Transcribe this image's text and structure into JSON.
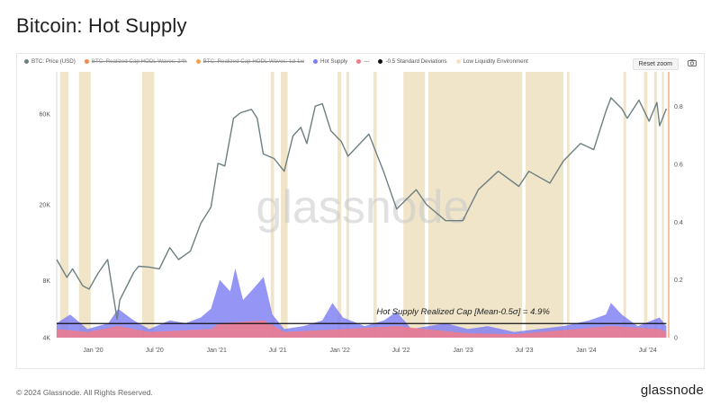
{
  "title": "Bitcoin: Hot Supply",
  "footer": {
    "copyright": "© 2024 Glassnode. All Rights Reserved.",
    "logo": "glassnode"
  },
  "watermark": "glassnode",
  "toolbar": {
    "reset_label": "Reset zoom"
  },
  "legend": [
    {
      "label": "BTC: Price (USD)",
      "color": "#6e7f80",
      "disabled": false
    },
    {
      "label": "BTC: Realized Cap HODL Waves: 24h",
      "color": "#f08a4b",
      "disabled": true
    },
    {
      "label": "BTC: Realized Cap HODL Waves: 1d-1w",
      "color": "#f0a050",
      "disabled": true
    },
    {
      "label": "Hot Supply",
      "color": "#7b7bf2",
      "disabled": false
    },
    {
      "label": "---",
      "color": "#f07b8a",
      "disabled": false
    },
    {
      "label": "-0.5 Standard Deviations",
      "color": "#111111",
      "disabled": false
    },
    {
      "label": "Low Liquidity Environment",
      "color": "#f3e3c6",
      "disabled": false
    }
  ],
  "colors": {
    "price": "#6e7f80",
    "hot": "#7b7bf2",
    "hot_lower": "#f07b8a",
    "threshold": "#111111",
    "low_liquidity": "#efe0c0",
    "right_axis": "#f29b5a"
  },
  "chart_data": {
    "type": "line",
    "title": "Bitcoin: Hot Supply",
    "annotation": "Hot Supply Realized Cap [Mean-0.5σ] = 4.9%",
    "x_ticks": [
      "Jan '20",
      "Jul '20",
      "Jan '21",
      "Jul '21",
      "Jan '22",
      "Jul '22",
      "Jan '23",
      "Jul '23",
      "Jan '24",
      "Jul '24"
    ],
    "x_range": [
      "2019-09-15",
      "2024-09-01"
    ],
    "y_left": {
      "scale": "log",
      "ticks": [
        "4K",
        "8K",
        "20K",
        "60K"
      ],
      "tick_values": [
        4000,
        8000,
        20000,
        60000
      ],
      "range": [
        4000,
        100000
      ]
    },
    "y_right": {
      "ticks": [
        "0",
        "0.2",
        "0.4",
        "0.6",
        "0.8"
      ],
      "tick_values": [
        0,
        0.2,
        0.4,
        0.6,
        0.8
      ],
      "range": [
        0,
        0.92
      ]
    },
    "series": [
      {
        "name": "BTC: Price (USD)",
        "axis": "left",
        "points": [
          [
            "2019-09-15",
            10300
          ],
          [
            "2019-10-15",
            8300
          ],
          [
            "2019-11-01",
            9200
          ],
          [
            "2019-12-01",
            7500
          ],
          [
            "2019-12-20",
            7200
          ],
          [
            "2020-01-15",
            8700
          ],
          [
            "2020-02-13",
            10300
          ],
          [
            "2020-03-12",
            5000
          ],
          [
            "2020-03-20",
            6300
          ],
          [
            "2020-04-30",
            8800
          ],
          [
            "2020-05-15",
            9500
          ],
          [
            "2020-06-15",
            9400
          ],
          [
            "2020-07-15",
            9200
          ],
          [
            "2020-08-15",
            11900
          ],
          [
            "2020-09-10",
            10300
          ],
          [
            "2020-10-15",
            11400
          ],
          [
            "2020-11-15",
            16000
          ],
          [
            "2020-12-15",
            19400
          ],
          [
            "2021-01-05",
            33000
          ],
          [
            "2021-01-25",
            32000
          ],
          [
            "2021-02-20",
            57000
          ],
          [
            "2021-03-13",
            61000
          ],
          [
            "2021-04-14",
            63500
          ],
          [
            "2021-05-01",
            57000
          ],
          [
            "2021-05-19",
            37000
          ],
          [
            "2021-06-20",
            35000
          ],
          [
            "2021-07-20",
            30000
          ],
          [
            "2021-08-15",
            46000
          ],
          [
            "2021-09-07",
            51000
          ],
          [
            "2021-09-25",
            42000
          ],
          [
            "2021-10-20",
            66000
          ],
          [
            "2021-11-10",
            68000
          ],
          [
            "2021-12-05",
            49000
          ],
          [
            "2022-01-05",
            43000
          ],
          [
            "2022-01-25",
            36000
          ],
          [
            "2022-03-28",
            47000
          ],
          [
            "2022-05-10",
            30000
          ],
          [
            "2022-06-18",
            19000
          ],
          [
            "2022-08-15",
            24000
          ],
          [
            "2022-09-15",
            20000
          ],
          [
            "2022-11-10",
            16500
          ],
          [
            "2022-12-31",
            16500
          ],
          [
            "2023-02-15",
            24000
          ],
          [
            "2023-04-15",
            30000
          ],
          [
            "2023-06-15",
            25000
          ],
          [
            "2023-07-15",
            30000
          ],
          [
            "2023-09-15",
            26000
          ],
          [
            "2023-10-25",
            34000
          ],
          [
            "2023-12-15",
            42000
          ],
          [
            "2024-01-23",
            39000
          ],
          [
            "2024-02-28",
            62000
          ],
          [
            "2024-03-14",
            73000
          ],
          [
            "2024-04-15",
            64000
          ],
          [
            "2024-05-01",
            57000
          ],
          [
            "2024-06-05",
            71000
          ],
          [
            "2024-07-05",
            55000
          ],
          [
            "2024-07-28",
            69000
          ],
          [
            "2024-08-05",
            52000
          ],
          [
            "2024-08-25",
            64000
          ]
        ]
      },
      {
        "name": "Hot Supply",
        "axis": "right",
        "points": [
          [
            "2019-09-15",
            0.05
          ],
          [
            "2019-10-25",
            0.08
          ],
          [
            "2019-12-15",
            0.03
          ],
          [
            "2020-02-15",
            0.05
          ],
          [
            "2020-03-15",
            0.1
          ],
          [
            "2020-04-30",
            0.06
          ],
          [
            "2020-06-15",
            0.03
          ],
          [
            "2020-08-15",
            0.06
          ],
          [
            "2020-10-01",
            0.05
          ],
          [
            "2020-11-15",
            0.07
          ],
          [
            "2020-12-15",
            0.1
          ],
          [
            "2021-01-10",
            0.2
          ],
          [
            "2021-02-10",
            0.16
          ],
          [
            "2021-02-25",
            0.24
          ],
          [
            "2021-03-20",
            0.13
          ],
          [
            "2021-04-20",
            0.17
          ],
          [
            "2021-05-20",
            0.21
          ],
          [
            "2021-06-15",
            0.08
          ],
          [
            "2021-07-20",
            0.03
          ],
          [
            "2021-09-15",
            0.04
          ],
          [
            "2021-11-10",
            0.06
          ],
          [
            "2021-12-10",
            0.12
          ],
          [
            "2022-01-10",
            0.07
          ],
          [
            "2022-03-15",
            0.04
          ],
          [
            "2022-05-12",
            0.06
          ],
          [
            "2022-06-18",
            0.09
          ],
          [
            "2022-08-01",
            0.03
          ],
          [
            "2022-11-10",
            0.05
          ],
          [
            "2023-01-15",
            0.03
          ],
          [
            "2023-03-15",
            0.04
          ],
          [
            "2023-06-01",
            0.02
          ],
          [
            "2023-10-25",
            0.04
          ],
          [
            "2024-01-10",
            0.06
          ],
          [
            "2024-02-28",
            0.08
          ],
          [
            "2024-03-14",
            0.12
          ],
          [
            "2024-04-15",
            0.08
          ],
          [
            "2024-06-01",
            0.04
          ],
          [
            "2024-08-05",
            0.07
          ],
          [
            "2024-08-25",
            0.04
          ]
        ]
      },
      {
        "name": "---",
        "axis": "right",
        "points": [
          [
            "2019-09-15",
            0.03
          ],
          [
            "2019-12-15",
            0.02
          ],
          [
            "2020-03-15",
            0.04
          ],
          [
            "2020-06-15",
            0.02
          ],
          [
            "2020-12-15",
            0.03
          ],
          [
            "2021-01-10",
            0.05
          ],
          [
            "2021-05-20",
            0.06
          ],
          [
            "2021-07-20",
            0.02
          ],
          [
            "2022-01-10",
            0.03
          ],
          [
            "2022-06-18",
            0.04
          ],
          [
            "2023-01-15",
            0.015
          ],
          [
            "2023-06-01",
            0.012
          ],
          [
            "2024-03-14",
            0.04
          ],
          [
            "2024-08-05",
            0.03
          ],
          [
            "2024-08-25",
            0.02
          ]
        ]
      },
      {
        "name": "-0.5 Standard Deviations",
        "axis": "right",
        "points": [
          [
            "2019-09-15",
            0.049
          ],
          [
            "2024-08-25",
            0.049
          ]
        ]
      }
    ],
    "low_liquidity_ranges": [
      [
        "2019-09-25",
        "2019-10-20"
      ],
      [
        "2019-11-20",
        "2019-12-25"
      ],
      [
        "2020-05-25",
        "2020-06-30"
      ],
      [
        "2021-06-10",
        "2021-06-20"
      ],
      [
        "2021-07-10",
        "2021-07-30"
      ],
      [
        "2021-12-25",
        "2022-01-05"
      ],
      [
        "2022-01-20",
        "2022-01-28"
      ],
      [
        "2022-04-10",
        "2022-04-20"
      ],
      [
        "2022-07-08",
        "2022-09-10"
      ],
      [
        "2022-09-20",
        "2023-06-25"
      ],
      [
        "2023-07-05",
        "2023-10-25"
      ],
      [
        "2023-11-05",
        "2023-11-12"
      ],
      [
        "2024-04-20",
        "2024-04-28"
      ],
      [
        "2024-06-20",
        "2024-06-30"
      ],
      [
        "2024-07-20",
        "2024-07-28"
      ],
      [
        "2024-08-12",
        "2024-08-18"
      ]
    ]
  }
}
